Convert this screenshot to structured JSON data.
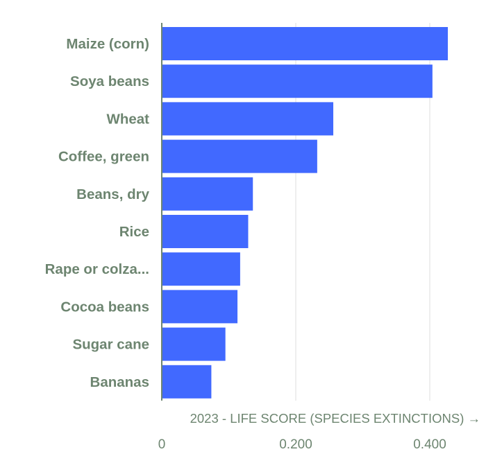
{
  "chart_data": {
    "type": "bar",
    "orientation": "horizontal",
    "categories": [
      "Maize (corn)",
      "Soya beans",
      "Wheat",
      "Coffee, green",
      "Beans, dry",
      "Rice",
      "Rape or colza...",
      "Cocoa beans",
      "Sugar cane",
      "Bananas"
    ],
    "values": [
      0.427,
      0.404,
      0.256,
      0.232,
      0.136,
      0.129,
      0.117,
      0.113,
      0.095,
      0.074
    ],
    "xlabel": "2023 - LIFE SCORE (SPECIES EXTINCTIONS) →",
    "ylabel": "",
    "xlim": [
      0,
      0.45
    ],
    "x_ticks": [
      0,
      0.2,
      0.4
    ],
    "x_tick_labels": [
      "0",
      "0.200",
      "0.400"
    ],
    "grid": "vertical",
    "bar_color": "#4169ff",
    "text_color": "#6d8570",
    "grid_color": "#e2e2e2",
    "axis_color": "#6d8570"
  }
}
